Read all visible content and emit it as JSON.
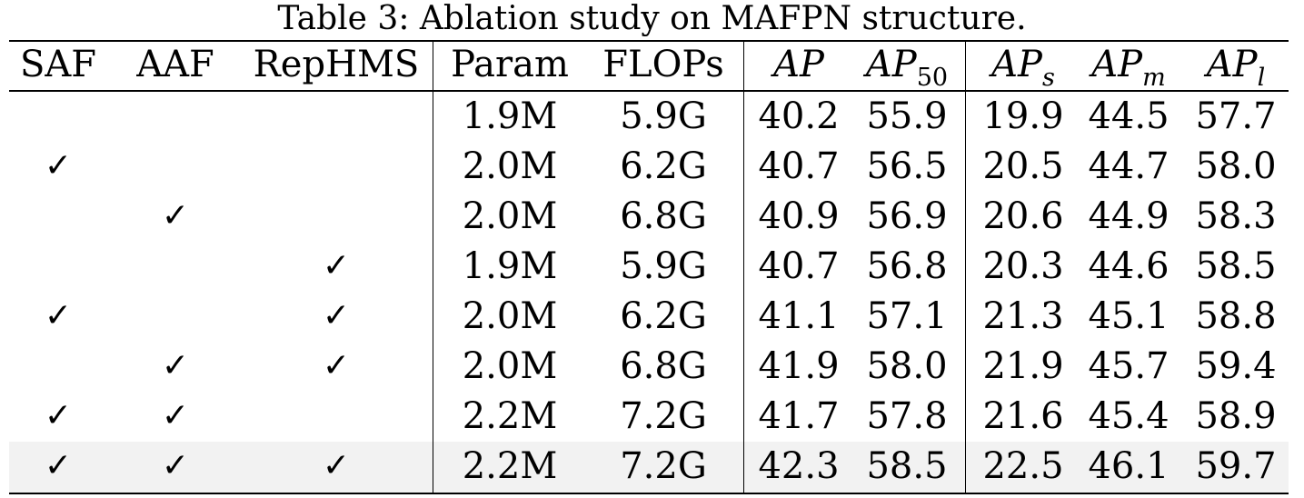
{
  "caption": "Table 3: Ablation study on MAFPN structure.",
  "columns": {
    "saf": "SAF",
    "aaf": "AAF",
    "rephms": "RepHMS",
    "param": "Param",
    "flops": "FLOPs",
    "ap_base": "AP",
    "ap50_sub": "50",
    "aps_sub": "s",
    "apm_sub": "m",
    "apl_sub": "l"
  },
  "check_symbol": "✓",
  "highlight_color": "#f2f2f2",
  "rows": [
    {
      "saf": "",
      "aaf": "",
      "rephms": "",
      "param": "1.9M",
      "flops": "5.9G",
      "ap": "40.2",
      "ap50": "55.9",
      "aps": "19.9",
      "apm": "44.5",
      "apl": "57.7"
    },
    {
      "saf": "✓",
      "aaf": "",
      "rephms": "",
      "param": "2.0M",
      "flops": "6.2G",
      "ap": "40.7",
      "ap50": "56.5",
      "aps": "20.5",
      "apm": "44.7",
      "apl": "58.0"
    },
    {
      "saf": "",
      "aaf": "✓",
      "rephms": "",
      "param": "2.0M",
      "flops": "6.8G",
      "ap": "40.9",
      "ap50": "56.9",
      "aps": "20.6",
      "apm": "44.9",
      "apl": "58.3"
    },
    {
      "saf": "",
      "aaf": "",
      "rephms": "✓",
      "param": "1.9M",
      "flops": "5.9G",
      "ap": "40.7",
      "ap50": "56.8",
      "aps": "20.3",
      "apm": "44.6",
      "apl": "58.5"
    },
    {
      "saf": "✓",
      "aaf": "",
      "rephms": "✓",
      "param": "2.0M",
      "flops": "6.2G",
      "ap": "41.1",
      "ap50": "57.1",
      "aps": "21.3",
      "apm": "45.1",
      "apl": "58.8"
    },
    {
      "saf": "",
      "aaf": "✓",
      "rephms": "✓",
      "param": "2.0M",
      "flops": "6.8G",
      "ap": "41.9",
      "ap50": "58.0",
      "aps": "21.9",
      "apm": "45.7",
      "apl": "59.4"
    },
    {
      "saf": "✓",
      "aaf": "✓",
      "rephms": "",
      "param": "2.2M",
      "flops": "7.2G",
      "ap": "41.7",
      "ap50": "57.8",
      "aps": "21.6",
      "apm": "45.4",
      "apl": "58.9"
    },
    {
      "saf": "✓",
      "aaf": "✓",
      "rephms": "✓",
      "param": "2.2M",
      "flops": "7.2G",
      "ap": "42.3",
      "ap50": "58.5",
      "aps": "22.5",
      "apm": "46.1",
      "apl": "59.7"
    }
  ]
}
